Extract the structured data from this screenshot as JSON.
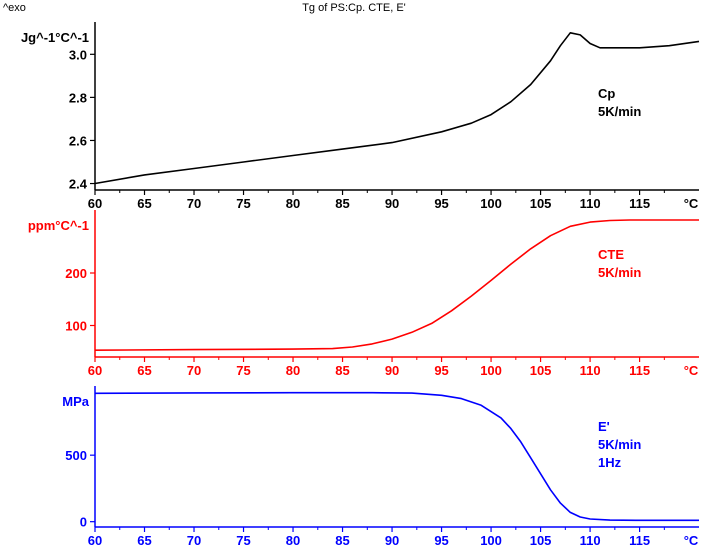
{
  "header": {
    "left": "^exo",
    "title": "Tg of PS:Cp. CTE, E'"
  },
  "chart_data": [
    {
      "type": "line",
      "color": "#000000",
      "y_unit": "Jg^-1°C^-1",
      "x_unit": "°C",
      "x_ticks": [
        60,
        65,
        70,
        75,
        80,
        85,
        90,
        95,
        100,
        105,
        110,
        115
      ],
      "y_ticks": [
        2.4,
        2.6,
        2.8,
        3.0
      ],
      "y_tick_labels": [
        "2.4",
        "2.6",
        "2.8",
        "3.0"
      ],
      "xlim": [
        60,
        121
      ],
      "ylim": [
        2.37,
        3.15
      ],
      "annotation": [
        "Cp",
        "5K/min"
      ],
      "series": [
        {
          "x": [
            60,
            65,
            70,
            75,
            80,
            85,
            90,
            95,
            98,
            100,
            102,
            104,
            106,
            107,
            108,
            109,
            110,
            111,
            112,
            115,
            118,
            121
          ],
          "y": [
            2.4,
            2.44,
            2.47,
            2.5,
            2.53,
            2.56,
            2.59,
            2.64,
            2.68,
            2.72,
            2.78,
            2.86,
            2.97,
            3.04,
            3.1,
            3.09,
            3.05,
            3.03,
            3.03,
            3.03,
            3.04,
            3.06
          ]
        }
      ]
    },
    {
      "type": "line",
      "color": "#ff0000",
      "y_unit": "ppm°C^-1",
      "x_unit": "°C",
      "x_ticks": [
        60,
        65,
        70,
        75,
        80,
        85,
        90,
        95,
        100,
        105,
        110,
        115
      ],
      "y_ticks": [
        100,
        200
      ],
      "y_tick_labels": [
        "100",
        "200"
      ],
      "xlim": [
        60,
        121
      ],
      "ylim": [
        40,
        320
      ],
      "annotation": [
        "CTE",
        "5K/min"
      ],
      "series": [
        {
          "x": [
            60,
            70,
            80,
            84,
            86,
            88,
            90,
            92,
            94,
            96,
            98,
            100,
            102,
            104,
            106,
            108,
            110,
            112,
            114,
            117,
            121
          ],
          "y": [
            53,
            54,
            55,
            56,
            59,
            65,
            74,
            87,
            104,
            128,
            156,
            186,
            217,
            246,
            271,
            289,
            297,
            300,
            301,
            301,
            301
          ]
        }
      ]
    },
    {
      "type": "line",
      "color": "#0000ff",
      "y_unit": "MPa",
      "x_unit": "°C",
      "x_ticks": [
        60,
        65,
        70,
        75,
        80,
        85,
        90,
        95,
        100,
        105,
        110,
        115
      ],
      "y_ticks": [
        0,
        500
      ],
      "y_tick_labels": [
        "0",
        "500"
      ],
      "xlim": [
        60,
        121
      ],
      "ylim": [
        -40,
        1020
      ],
      "annotation": [
        "E'",
        "5K/min",
        "1Hz"
      ],
      "series": [
        {
          "x": [
            60,
            70,
            80,
            88,
            92,
            95,
            97,
            99,
            101,
            102,
            103,
            104,
            105,
            106,
            107,
            108,
            109,
            110,
            112,
            115,
            118,
            121
          ],
          "y": [
            965,
            968,
            970,
            970,
            967,
            950,
            925,
            875,
            780,
            700,
            600,
            480,
            360,
            240,
            140,
            70,
            35,
            20,
            12,
            10,
            10,
            10
          ]
        }
      ]
    }
  ]
}
